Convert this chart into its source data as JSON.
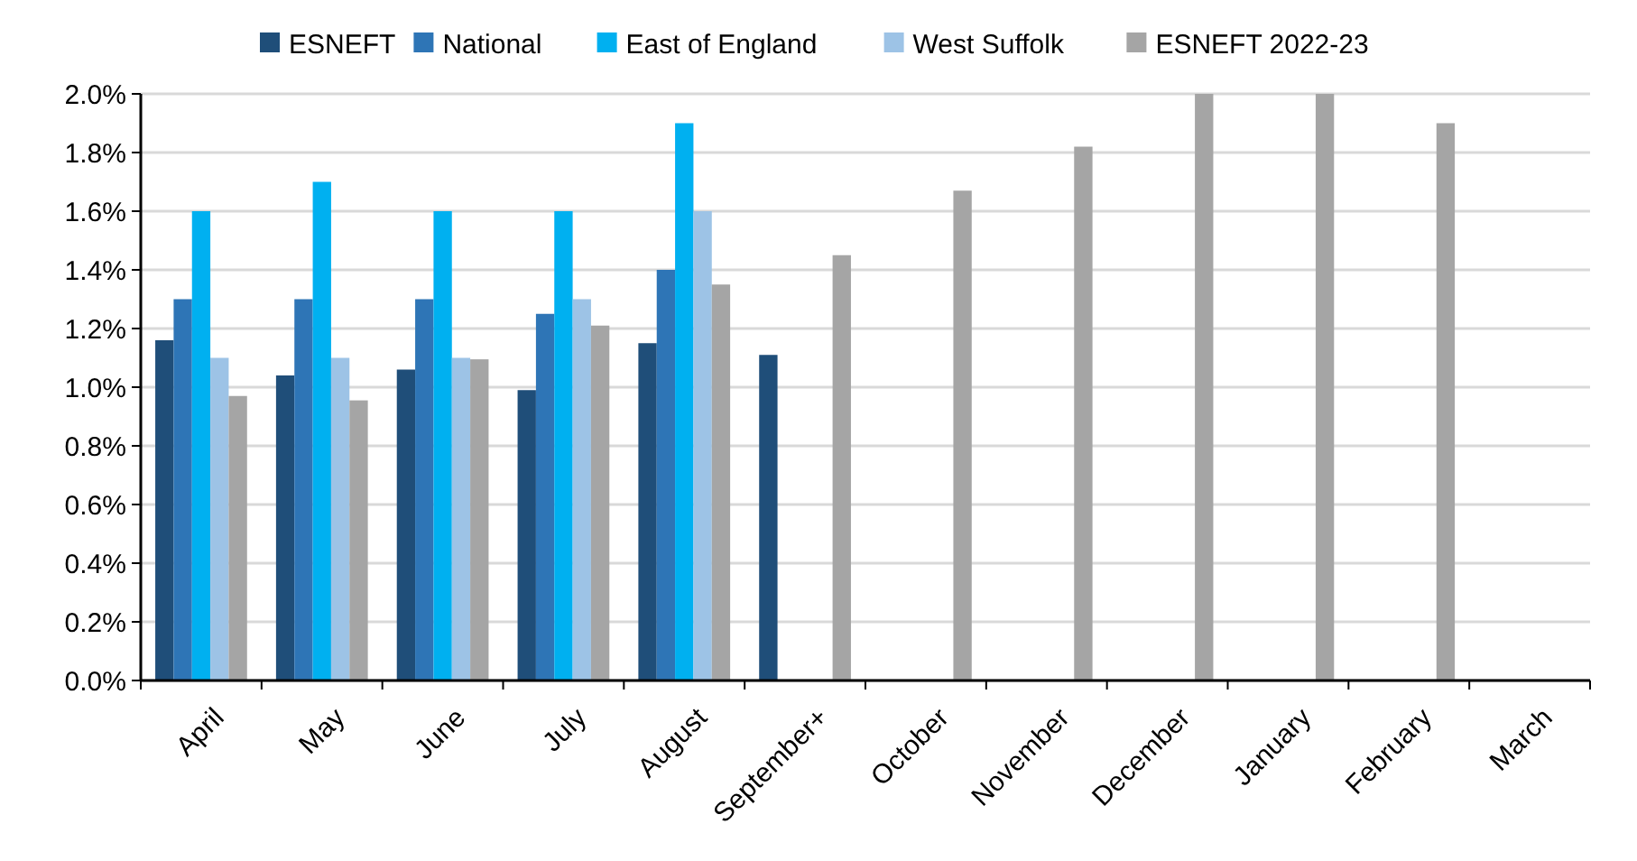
{
  "chart_data": {
    "type": "bar",
    "categories": [
      "April",
      "May",
      "June",
      "July",
      "August",
      "September+",
      "October",
      "November",
      "December",
      "January",
      "February",
      "March"
    ],
    "series": [
      {
        "name": "ESNEFT",
        "color": "#1f4e79",
        "values": [
          1.16,
          1.04,
          1.06,
          0.99,
          1.15,
          1.11,
          null,
          null,
          null,
          null,
          null,
          null
        ]
      },
      {
        "name": "National",
        "color": "#2e75b6",
        "values": [
          1.3,
          1.3,
          1.3,
          1.25,
          1.4,
          null,
          null,
          null,
          null,
          null,
          null,
          null
        ]
      },
      {
        "name": "East of England",
        "color": "#00b0f0",
        "values": [
          1.6,
          1.7,
          1.6,
          1.6,
          1.9,
          null,
          null,
          null,
          null,
          null,
          null,
          null
        ]
      },
      {
        "name": "West Suffolk",
        "color": "#9dc3e6",
        "values": [
          1.1,
          1.1,
          1.1,
          1.3,
          1.6,
          null,
          null,
          null,
          null,
          null,
          null,
          null
        ]
      },
      {
        "name": "ESNEFT 2022-23",
        "color": "#a5a5a5",
        "values": [
          0.97,
          0.955,
          1.095,
          1.21,
          1.35,
          1.45,
          1.67,
          1.82,
          2.0,
          2.0,
          1.9,
          null
        ]
      }
    ],
    "ylim": [
      0,
      2.0
    ],
    "yticks": [
      {
        "value": 0,
        "label": "0.0%"
      },
      {
        "value": 0.2,
        "label": "0.2%"
      },
      {
        "value": 0.4,
        "label": "0.4%"
      },
      {
        "value": 0.6,
        "label": "0.6%"
      },
      {
        "value": 0.8,
        "label": "0.8%"
      },
      {
        "value": 1.0,
        "label": "1.0%"
      },
      {
        "value": 1.2,
        "label": "1.2%"
      },
      {
        "value": 1.4,
        "label": "1.4%"
      },
      {
        "value": 1.6,
        "label": "1.6%"
      },
      {
        "value": 1.8,
        "label": "1.8%"
      },
      {
        "value": 2.0,
        "label": "2.0%"
      }
    ],
    "grid": "y",
    "legend": "top"
  }
}
